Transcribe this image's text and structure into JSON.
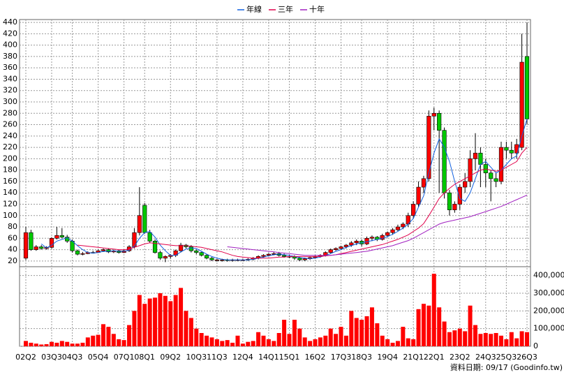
{
  "chart_data": {
    "type": "candlestick",
    "categories": [
      "02Q2",
      null,
      null,
      null,
      null,
      "03Q3",
      null,
      null,
      null,
      "04Q3",
      null,
      null,
      null,
      null,
      "05Q4",
      null,
      null,
      null,
      null,
      "07Q1",
      null,
      null,
      null,
      "08Q1",
      null,
      null,
      null,
      null,
      "09Q2",
      null,
      null,
      null,
      null,
      "10Q3",
      null,
      null,
      null,
      "11Q3",
      null,
      null,
      null,
      null,
      "12Q4",
      null,
      null,
      null,
      null,
      "14Q1",
      null,
      null,
      null,
      "15Q1",
      null,
      null,
      null,
      null,
      "16Q2",
      null,
      null,
      null,
      null,
      "17Q3",
      null,
      null,
      null,
      "18Q3",
      null,
      null,
      null,
      null,
      "19Q4",
      null,
      null,
      null,
      null,
      "21Q1",
      null,
      null,
      null,
      "22Q1",
      null,
      null,
      null,
      null,
      "23Q2",
      null,
      null,
      null,
      null,
      "24Q3",
      null,
      null,
      null,
      "25Q3",
      null,
      null,
      null,
      "26Q3"
    ],
    "open": [
      25,
      70,
      40,
      45,
      42,
      44,
      60,
      65,
      62,
      55,
      38,
      32,
      33,
      35,
      35,
      38,
      40,
      36,
      38,
      35,
      38,
      45,
      70,
      118,
      70,
      55,
      35,
      25,
      28,
      30,
      38,
      48,
      45,
      38,
      35,
      30,
      25,
      22,
      22,
      22,
      21,
      22,
      22,
      22,
      23,
      25,
      28,
      30,
      32,
      33,
      30,
      28,
      28,
      25,
      22,
      24,
      26,
      28,
      30,
      35,
      40,
      42,
      45,
      48,
      52,
      55,
      50,
      60,
      62,
      58,
      65,
      70,
      75,
      80,
      85,
      100,
      120,
      150,
      165,
      275,
      280,
      250,
      140,
      110,
      120,
      150,
      160,
      200,
      210,
      190,
      175,
      165,
      160,
      220,
      215,
      210,
      220,
      380
    ],
    "high": [
      80,
      75,
      48,
      48,
      46,
      62,
      80,
      78,
      66,
      58,
      40,
      36,
      37,
      38,
      40,
      42,
      42,
      40,
      40,
      40,
      48,
      78,
      150,
      122,
      75,
      58,
      38,
      30,
      32,
      40,
      52,
      50,
      48,
      40,
      36,
      32,
      27,
      24,
      24,
      24,
      24,
      24,
      24,
      25,
      27,
      30,
      32,
      34,
      36,
      36,
      33,
      31,
      30,
      27,
      26,
      28,
      30,
      32,
      37,
      42,
      44,
      47,
      50,
      55,
      58,
      58,
      63,
      65,
      64,
      68,
      72,
      78,
      84,
      88,
      105,
      125,
      160,
      170,
      285,
      290,
      285,
      255,
      145,
      125,
      155,
      175,
      215,
      245,
      220,
      200,
      180,
      175,
      230,
      230,
      230,
      235,
      420,
      440
    ],
    "low": [
      22,
      38,
      38,
      40,
      40,
      42,
      58,
      60,
      52,
      35,
      30,
      30,
      32,
      33,
      34,
      36,
      34,
      34,
      33,
      34,
      36,
      42,
      65,
      68,
      52,
      33,
      22,
      18,
      24,
      27,
      35,
      42,
      35,
      32,
      28,
      23,
      20,
      19,
      19,
      19,
      19,
      20,
      20,
      20,
      21,
      23,
      26,
      28,
      30,
      28,
      26,
      25,
      22,
      20,
      20,
      22,
      24,
      26,
      28,
      33,
      38,
      40,
      42,
      45,
      48,
      46,
      48,
      55,
      55,
      56,
      62,
      66,
      72,
      76,
      80,
      95,
      115,
      140,
      160,
      250,
      140,
      130,
      100,
      105,
      110,
      140,
      150,
      180,
      150,
      150,
      125,
      150,
      155,
      200,
      200,
      200,
      215,
      260
    ],
    "close": [
      70,
      40,
      45,
      42,
      44,
      60,
      65,
      62,
      55,
      38,
      32,
      33,
      35,
      35,
      38,
      40,
      36,
      38,
      35,
      38,
      45,
      70,
      100,
      70,
      55,
      35,
      25,
      28,
      30,
      38,
      48,
      45,
      38,
      35,
      30,
      25,
      22,
      22,
      22,
      21,
      22,
      22,
      22,
      23,
      25,
      28,
      30,
      32,
      33,
      30,
      28,
      28,
      25,
      22,
      24,
      26,
      28,
      30,
      35,
      40,
      42,
      45,
      48,
      52,
      55,
      50,
      60,
      62,
      58,
      65,
      70,
      75,
      80,
      85,
      100,
      120,
      150,
      165,
      275,
      280,
      250,
      140,
      110,
      120,
      150,
      160,
      200,
      210,
      190,
      175,
      165,
      160,
      220,
      215,
      210,
      225,
      370,
      270
    ],
    "up_color": "#ff0000",
    "down_color": "#00c800",
    "ylim": [
      10,
      445
    ],
    "yticks": [
      20,
      40,
      60,
      80,
      100,
      120,
      140,
      160,
      180,
      200,
      220,
      240,
      260,
      280,
      300,
      320,
      340,
      360,
      380,
      400,
      420,
      440
    ],
    "grid": true,
    "series": [
      {
        "name": "年線",
        "color": "#1060e0",
        "values": [
          null,
          null,
          null,
          50,
          43,
          48,
          55,
          58,
          61,
          55,
          47,
          40,
          35,
          34,
          35,
          37,
          37,
          38,
          37,
          37,
          39,
          46,
          60,
          70,
          72,
          62,
          48,
          38,
          30,
          30,
          36,
          41,
          43,
          42,
          37,
          32,
          28,
          25,
          23,
          22,
          22,
          22,
          22,
          22,
          23,
          25,
          27,
          29,
          31,
          32,
          31,
          30,
          28,
          26,
          25,
          24,
          25,
          27,
          30,
          33,
          37,
          40,
          44,
          47,
          50,
          52,
          54,
          56,
          58,
          60,
          63,
          67,
          72,
          78,
          85,
          95,
          115,
          135,
          175,
          210,
          235,
          220,
          195,
          160,
          130,
          125,
          140,
          165,
          190,
          195,
          185,
          175,
          180,
          190,
          200,
          205,
          240,
          270
        ]
      },
      {
        "name": "三年",
        "color": "#e0004a",
        "values": [
          null,
          null,
          null,
          null,
          null,
          null,
          null,
          null,
          null,
          null,
          48,
          47,
          46,
          45,
          44,
          43,
          42,
          41,
          40,
          40,
          41,
          44,
          47,
          50,
          52,
          51,
          50,
          49,
          48,
          47,
          47,
          47,
          46,
          45,
          44,
          42,
          40,
          38,
          36,
          33,
          30,
          28,
          27,
          26,
          25,
          25,
          25,
          25,
          26,
          27,
          27,
          28,
          28,
          28,
          28,
          28,
          28,
          28,
          29,
          30,
          31,
          33,
          35,
          37,
          39,
          41,
          43,
          45,
          47,
          49,
          52,
          55,
          58,
          62,
          66,
          72,
          78,
          86,
          100,
          115,
          130,
          140,
          148,
          155,
          160,
          165,
          170,
          175,
          180,
          182,
          180,
          178,
          180,
          185,
          190,
          195,
          210,
          220
        ]
      },
      {
        "name": "十年",
        "color": "#a020c0",
        "values": [
          null,
          null,
          null,
          null,
          null,
          null,
          null,
          null,
          null,
          null,
          null,
          null,
          null,
          null,
          null,
          null,
          null,
          null,
          null,
          null,
          null,
          null,
          null,
          null,
          null,
          null,
          null,
          null,
          null,
          null,
          null,
          null,
          null,
          null,
          null,
          null,
          null,
          null,
          null,
          45,
          44,
          43,
          42,
          41,
          40,
          39,
          38,
          37,
          36,
          35,
          34,
          33,
          32,
          31,
          30,
          30,
          30,
          30,
          30,
          30,
          31,
          32,
          33,
          34,
          35,
          36,
          37,
          39,
          41,
          43,
          45,
          47,
          50,
          53,
          56,
          60,
          65,
          70,
          75,
          80,
          85,
          88,
          90,
          92,
          94,
          96,
          98,
          101,
          104,
          107,
          110,
          113,
          116,
          120,
          124,
          128,
          132,
          136
        ]
      }
    ],
    "volume": {
      "color": "#ff0000",
      "values": [
        30000,
        20000,
        15000,
        10000,
        12000,
        25000,
        20000,
        30000,
        25000,
        15000,
        15000,
        20000,
        50000,
        60000,
        65000,
        125000,
        110000,
        70000,
        40000,
        35000,
        120000,
        200000,
        290000,
        240000,
        270000,
        275000,
        300000,
        285000,
        255000,
        290000,
        330000,
        200000,
        160000,
        100000,
        75000,
        60000,
        50000,
        40000,
        30000,
        35000,
        20000,
        60000,
        15000,
        25000,
        30000,
        80000,
        60000,
        40000,
        30000,
        75000,
        150000,
        70000,
        150000,
        100000,
        50000,
        30000,
        40000,
        50000,
        60000,
        100000,
        70000,
        110000,
        60000,
        200000,
        160000,
        150000,
        170000,
        220000,
        130000,
        60000,
        40000,
        20000,
        30000,
        110000,
        45000,
        40000,
        210000,
        240000,
        230000,
        410000,
        220000,
        140000,
        80000,
        90000,
        100000,
        85000,
        230000,
        120000,
        70000,
        75000,
        70000,
        75000,
        60000,
        40000,
        80000,
        45000,
        85000,
        80000
      ],
      "ylim": [
        0,
        450000
      ],
      "yticks": [
        0,
        {
          "value": 100000,
          "label": "100,000"
        },
        {
          "value": 200000,
          "label": "200,000"
        },
        {
          "value": 300000,
          "label": "300,000"
        },
        {
          "value": 400000,
          "label": "400,000"
        }
      ]
    },
    "source": "資料日期: 09/17  (Goodinfo.tw)"
  }
}
